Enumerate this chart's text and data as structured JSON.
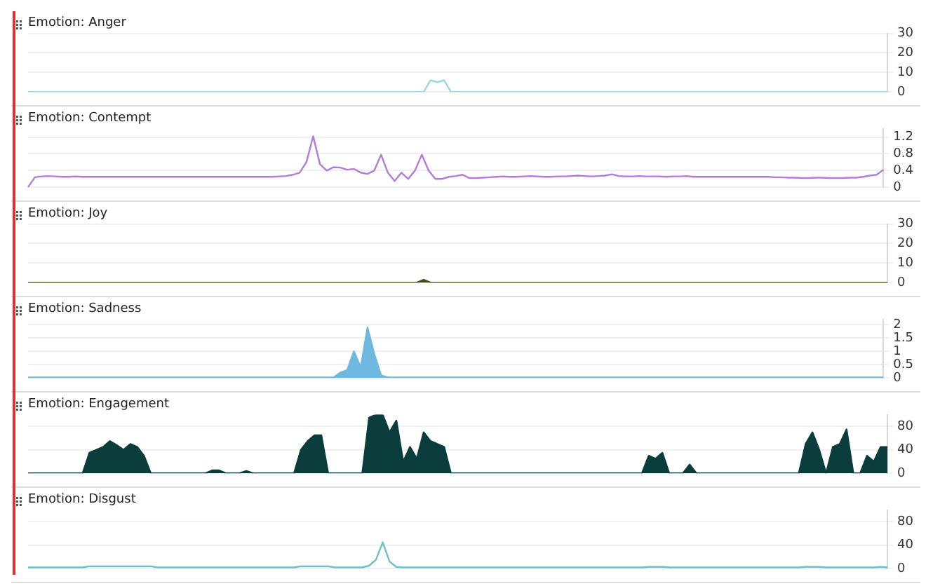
{
  "chart_data": [
    {
      "type": "line",
      "title": "Emotion: Anger",
      "color": "#9fd3e6",
      "ylim": [
        0,
        30
      ],
      "yticks": [
        0,
        10,
        20,
        30
      ],
      "grid": "y",
      "tick_labels": "y",
      "categories": [
        null,
        null,
        null,
        null,
        null,
        null,
        null,
        null,
        null,
        null,
        null,
        null,
        null,
        null,
        null,
        null,
        null,
        null,
        null,
        null,
        null,
        null,
        null,
        null,
        null,
        null,
        null,
        null,
        null,
        null,
        null,
        null,
        null,
        null,
        null,
        null,
        null,
        null,
        null,
        null,
        null,
        null,
        null,
        null,
        null,
        null,
        null,
        null,
        null,
        null,
        null,
        null,
        null,
        null,
        null,
        null,
        null,
        null,
        null,
        null,
        null,
        null,
        null,
        null,
        null,
        null,
        null,
        null,
        null,
        null,
        null,
        null,
        null,
        null,
        null,
        null,
        null,
        null,
        null,
        null,
        null,
        null,
        null,
        null,
        null,
        null,
        null,
        null,
        null,
        null,
        null,
        null,
        null,
        null,
        null,
        null,
        null,
        null,
        null,
        null,
        null,
        null,
        null,
        null,
        null,
        null,
        null,
        null,
        null,
        null,
        null,
        null,
        null,
        null,
        null,
        null,
        null,
        null,
        null,
        null,
        null,
        null,
        null,
        null,
        null,
        null,
        null
      ],
      "values": [
        0,
        0,
        0,
        0,
        0,
        0,
        0,
        0,
        0,
        0,
        0,
        0,
        0,
        0,
        0,
        0,
        0,
        0,
        0,
        0,
        0,
        0,
        0,
        0,
        0,
        0,
        0,
        0,
        0,
        0,
        0,
        0,
        0,
        0,
        0,
        0,
        0,
        0,
        0,
        0,
        0,
        0,
        0,
        0,
        0,
        0,
        0,
        0,
        0,
        0,
        0,
        0,
        0,
        0,
        0,
        0,
        0,
        0,
        0,
        6,
        5,
        6,
        0,
        0,
        0,
        0,
        0,
        0,
        0,
        0,
        0,
        0,
        0,
        0,
        0,
        0,
        0,
        0,
        0,
        0,
        0,
        0,
        0,
        0,
        0,
        0,
        0,
        0,
        0,
        0,
        0,
        0,
        0,
        0,
        0,
        0,
        0,
        0,
        0,
        0,
        0,
        0,
        0,
        0,
        0,
        0,
        0,
        0,
        0,
        0,
        0,
        0,
        0,
        0,
        0,
        0,
        0,
        0,
        0,
        0,
        0,
        0,
        0,
        0,
        0,
        0,
        0
      ]
    },
    {
      "type": "line",
      "title": "Emotion: Contempt",
      "color": "#b57bd9",
      "ylim": [
        0,
        1.4
      ],
      "yticks": [
        0,
        0.4,
        0.8,
        1.2
      ],
      "grid": "y",
      "tick_labels": "y",
      "categories": [
        null,
        null,
        null,
        null,
        null,
        null,
        null,
        null,
        null,
        null,
        null,
        null,
        null,
        null,
        null,
        null,
        null,
        null,
        null,
        null,
        null,
        null,
        null,
        null,
        null,
        null,
        null,
        null,
        null,
        null,
        null,
        null,
        null,
        null,
        null,
        null,
        null,
        null,
        null,
        null,
        null,
        null,
        null,
        null,
        null,
        null,
        null,
        null,
        null,
        null,
        null,
        null,
        null,
        null,
        null,
        null,
        null,
        null,
        null,
        null,
        null,
        null,
        null,
        null,
        null,
        null,
        null,
        null,
        null,
        null,
        null,
        null,
        null,
        null,
        null,
        null,
        null,
        null,
        null,
        null,
        null,
        null,
        null,
        null,
        null,
        null,
        null,
        null,
        null,
        null,
        null,
        null,
        null,
        null,
        null,
        null,
        null,
        null,
        null,
        null,
        null,
        null,
        null,
        null,
        null,
        null,
        null,
        null,
        null,
        null,
        null,
        null,
        null,
        null,
        null,
        null,
        null,
        null,
        null,
        null,
        null,
        null,
        null,
        null,
        null,
        null,
        null
      ],
      "values": [
        0,
        0.24,
        0.26,
        0.27,
        0.26,
        0.25,
        0.25,
        0.26,
        0.25,
        0.25,
        0.25,
        0.25,
        0.25,
        0.25,
        0.25,
        0.25,
        0.25,
        0.25,
        0.25,
        0.25,
        0.25,
        0.25,
        0.25,
        0.25,
        0.25,
        0.25,
        0.25,
        0.25,
        0.25,
        0.25,
        0.25,
        0.25,
        0.25,
        0.25,
        0.25,
        0.25,
        0.25,
        0.26,
        0.27,
        0.3,
        0.35,
        0.6,
        1.22,
        0.55,
        0.4,
        0.48,
        0.47,
        0.42,
        0.44,
        0.35,
        0.32,
        0.4,
        0.78,
        0.35,
        0.15,
        0.35,
        0.2,
        0.4,
        0.78,
        0.4,
        0.2,
        0.2,
        0.25,
        0.27,
        0.3,
        0.22,
        0.22,
        0.23,
        0.24,
        0.25,
        0.26,
        0.25,
        0.25,
        0.26,
        0.27,
        0.26,
        0.25,
        0.25,
        0.26,
        0.26,
        0.27,
        0.28,
        0.27,
        0.26,
        0.27,
        0.28,
        0.31,
        0.27,
        0.26,
        0.26,
        0.27,
        0.26,
        0.26,
        0.26,
        0.25,
        0.26,
        0.26,
        0.27,
        0.25,
        0.25,
        0.25,
        0.25,
        0.25,
        0.25,
        0.25,
        0.25,
        0.25,
        0.25,
        0.25,
        0.25,
        0.24,
        0.24,
        0.23,
        0.23,
        0.22,
        0.22,
        0.23,
        0.23,
        0.22,
        0.22,
        0.22,
        0.23,
        0.23,
        0.25,
        0.28,
        0.3,
        0.42
      ]
    },
    {
      "type": "area",
      "title": "Emotion: Joy",
      "color": "#4a4a1e",
      "ylim": [
        0,
        30
      ],
      "yticks": [
        0,
        10,
        20,
        30
      ],
      "grid": "y",
      "tick_labels": "y",
      "categories": [
        null,
        null,
        null,
        null,
        null,
        null,
        null,
        null,
        null,
        null,
        null,
        null,
        null,
        null,
        null,
        null,
        null,
        null,
        null,
        null,
        null,
        null,
        null,
        null,
        null,
        null,
        null,
        null,
        null,
        null,
        null,
        null,
        null,
        null,
        null,
        null,
        null,
        null,
        null,
        null,
        null,
        null,
        null,
        null,
        null,
        null,
        null,
        null,
        null,
        null,
        null,
        null,
        null,
        null,
        null,
        null,
        null,
        null,
        null,
        null,
        null,
        null,
        null,
        null,
        null,
        null,
        null,
        null,
        null,
        null,
        null,
        null,
        null,
        null,
        null,
        null,
        null,
        null,
        null,
        null,
        null,
        null,
        null,
        null,
        null,
        null,
        null,
        null,
        null,
        null,
        null,
        null,
        null,
        null,
        null,
        null,
        null,
        null,
        null,
        null,
        null,
        null,
        null,
        null,
        null,
        null,
        null,
        null,
        null,
        null,
        null,
        null,
        null,
        null,
        null,
        null,
        null,
        null,
        null,
        null,
        null,
        null,
        null,
        null,
        null,
        null,
        null
      ],
      "values": [
        0,
        0,
        0,
        0,
        0,
        0,
        0,
        0,
        0,
        0,
        0,
        0,
        0,
        0,
        0,
        0,
        0,
        0,
        0,
        0,
        0,
        0,
        0,
        0,
        0,
        0,
        0,
        0,
        0,
        0,
        0,
        0,
        0,
        0,
        0,
        0,
        0,
        0,
        0,
        0,
        0,
        0,
        0,
        0,
        0,
        0,
        0,
        0,
        0,
        0,
        0,
        0,
        0,
        0,
        0,
        0,
        0,
        0,
        1.5,
        0,
        0,
        0,
        0,
        0,
        0,
        0,
        0,
        0,
        0,
        0,
        0,
        0,
        0,
        0,
        0,
        0,
        0,
        0,
        0,
        0,
        0,
        0,
        0,
        0,
        0,
        0,
        0,
        0,
        0,
        0,
        0,
        0,
        0,
        0,
        0,
        0,
        0,
        0,
        0,
        0,
        0,
        0,
        0,
        0,
        0,
        0,
        0,
        0,
        0,
        0,
        0,
        0,
        0,
        0,
        0,
        0,
        0,
        0,
        0,
        0,
        0,
        0,
        0,
        0,
        0,
        0,
        0
      ]
    },
    {
      "type": "area",
      "title": "Emotion: Sadness",
      "color": "#6fb8e0",
      "ylim": [
        0,
        2.2
      ],
      "yticks": [
        0,
        0.5,
        1,
        1.5,
        2
      ],
      "grid": "y",
      "tick_labels": "y",
      "categories": [
        null,
        null,
        null,
        null,
        null,
        null,
        null,
        null,
        null,
        null,
        null,
        null,
        null,
        null,
        null,
        null,
        null,
        null,
        null,
        null,
        null,
        null,
        null,
        null,
        null,
        null,
        null,
        null,
        null,
        null,
        null,
        null,
        null,
        null,
        null,
        null,
        null,
        null,
        null,
        null,
        null,
        null,
        null,
        null,
        null,
        null,
        null,
        null,
        null,
        null,
        null,
        null,
        null,
        null,
        null,
        null,
        null,
        null,
        null,
        null,
        null,
        null,
        null,
        null,
        null,
        null,
        null,
        null,
        null,
        null,
        null,
        null,
        null,
        null,
        null,
        null,
        null,
        null,
        null,
        null,
        null,
        null,
        null,
        null,
        null,
        null,
        null,
        null,
        null,
        null,
        null,
        null,
        null,
        null,
        null,
        null,
        null,
        null,
        null,
        null,
        null,
        null,
        null,
        null,
        null,
        null,
        null,
        null,
        null,
        null,
        null,
        null,
        null,
        null,
        null,
        null,
        null,
        null,
        null,
        null,
        null,
        null,
        null,
        null,
        null,
        null,
        null
      ],
      "values": [
        0.02,
        0.02,
        0.02,
        0.02,
        0.02,
        0.02,
        0.02,
        0.02,
        0.02,
        0.02,
        0.02,
        0.02,
        0.02,
        0.02,
        0.02,
        0.02,
        0.02,
        0.02,
        0.02,
        0.02,
        0.02,
        0.02,
        0.02,
        0.02,
        0.02,
        0.02,
        0.02,
        0.02,
        0.02,
        0.02,
        0.02,
        0.02,
        0.02,
        0.02,
        0.02,
        0.02,
        0.02,
        0.02,
        0.02,
        0.02,
        0.02,
        0.02,
        0.02,
        0.02,
        0.02,
        0.02,
        0.2,
        0.3,
        1.0,
        0.4,
        1.9,
        0.9,
        0.1,
        0.02,
        0.02,
        0.02,
        0.02,
        0.02,
        0.02,
        0.02,
        0.02,
        0.02,
        0.02,
        0.02,
        0.02,
        0.02,
        0.02,
        0.02,
        0.02,
        0.02,
        0.02,
        0.02,
        0.02,
        0.02,
        0.02,
        0.02,
        0.02,
        0.02,
        0.02,
        0.02,
        0.02,
        0.02,
        0.02,
        0.02,
        0.02,
        0.02,
        0.02,
        0.02,
        0.02,
        0.02,
        0.02,
        0.02,
        0.02,
        0.02,
        0.02,
        0.02,
        0.02,
        0.02,
        0.02,
        0.02,
        0.02,
        0.02,
        0.02,
        0.02,
        0.02,
        0.02,
        0.02,
        0.02,
        0.02,
        0.02,
        0.02,
        0.02,
        0.02,
        0.02,
        0.02,
        0.02,
        0.02,
        0.02,
        0.02,
        0.02,
        0.02,
        0.02,
        0.02,
        0.02,
        0.02,
        0.02,
        0.02
      ]
    },
    {
      "type": "area",
      "title": "Emotion: Engagement",
      "color": "#0b3d3d",
      "ylim": [
        0,
        100
      ],
      "yticks": [
        0,
        40,
        80
      ],
      "grid": "y",
      "tick_labels": "y",
      "categories": [
        null,
        null,
        null,
        null,
        null,
        null,
        null,
        null,
        null,
        null,
        null,
        null,
        null,
        null,
        null,
        null,
        null,
        null,
        null,
        null,
        null,
        null,
        null,
        null,
        null,
        null,
        null,
        null,
        null,
        null,
        null,
        null,
        null,
        null,
        null,
        null,
        null,
        null,
        null,
        null,
        null,
        null,
        null,
        null,
        null,
        null,
        null,
        null,
        null,
        null,
        null,
        null,
        null,
        null,
        null,
        null,
        null,
        null,
        null,
        null,
        null,
        null,
        null,
        null,
        null,
        null,
        null,
        null,
        null,
        null,
        null,
        null,
        null,
        null,
        null,
        null,
        null,
        null,
        null,
        null,
        null,
        null,
        null,
        null,
        null,
        null,
        null,
        null,
        null,
        null,
        null,
        null,
        null,
        null,
        null,
        null,
        null,
        null,
        null,
        null,
        null,
        null,
        null,
        null,
        null,
        null,
        null,
        null,
        null,
        null,
        null,
        null,
        null,
        null,
        null,
        null,
        null,
        null,
        null,
        null,
        null,
        null,
        null,
        null,
        null,
        null,
        null
      ],
      "values": [
        0,
        0,
        0,
        0,
        0,
        0,
        0,
        0,
        0,
        35,
        40,
        45,
        55,
        48,
        40,
        50,
        45,
        30,
        0,
        0,
        0,
        0,
        0,
        0,
        0,
        0,
        0,
        5,
        5,
        0,
        0,
        0,
        4,
        0,
        0,
        0,
        0,
        0,
        0,
        0,
        40,
        55,
        65,
        65,
        0,
        0,
        0,
        0,
        0,
        0,
        95,
        100,
        100,
        70,
        90,
        20,
        45,
        25,
        70,
        55,
        50,
        45,
        0,
        0,
        0,
        0,
        0,
        0,
        0,
        0,
        0,
        0,
        0,
        0,
        0,
        0,
        0,
        0,
        0,
        0,
        0,
        0,
        0,
        0,
        0,
        0,
        0,
        0,
        0,
        0,
        0,
        30,
        25,
        35,
        0,
        0,
        0,
        15,
        0,
        0,
        0,
        0,
        0,
        0,
        0,
        0,
        0,
        0,
        0,
        0,
        0,
        0,
        0,
        0,
        50,
        70,
        40,
        0,
        45,
        50,
        75,
        0,
        0,
        30,
        20,
        45,
        45
      ]
    },
    {
      "type": "line",
      "title": "Emotion: Disgust",
      "color": "#6cc0c8",
      "ylim": [
        0,
        100
      ],
      "yticks": [
        0,
        40,
        80
      ],
      "grid": "y",
      "tick_labels": "y",
      "categories": [
        null,
        null,
        null,
        null,
        null,
        null,
        null,
        null,
        null,
        null,
        null,
        null,
        null,
        null,
        null,
        null,
        null,
        null,
        null,
        null,
        null,
        null,
        null,
        null,
        null,
        null,
        null,
        null,
        null,
        null,
        null,
        null,
        null,
        null,
        null,
        null,
        null,
        null,
        null,
        null,
        null,
        null,
        null,
        null,
        null,
        null,
        null,
        null,
        null,
        null,
        null,
        null,
        null,
        null,
        null,
        null,
        null,
        null,
        null,
        null,
        null,
        null,
        null,
        null,
        null,
        null,
        null,
        null,
        null,
        null,
        null,
        null,
        null,
        null,
        null,
        null,
        null,
        null,
        null,
        null,
        null,
        null,
        null,
        null,
        null,
        null,
        null,
        null,
        null,
        null,
        null,
        null,
        null,
        null,
        null,
        null,
        null,
        null,
        null,
        null,
        null,
        null,
        null,
        null,
        null,
        null,
        null,
        null,
        null,
        null,
        null,
        null,
        null,
        null,
        null,
        null,
        null,
        null,
        null,
        null,
        null,
        null,
        null,
        null,
        null,
        null,
        null
      ],
      "values": [
        2,
        2,
        2,
        2,
        2,
        2,
        2,
        2,
        2,
        4,
        4,
        4,
        4,
        4,
        4,
        4,
        4,
        4,
        4,
        2,
        2,
        2,
        2,
        2,
        2,
        2,
        2,
        2,
        2,
        2,
        2,
        2,
        2,
        2,
        2,
        2,
        2,
        2,
        2,
        2,
        4,
        4,
        4,
        4,
        4,
        2,
        2,
        2,
        2,
        2,
        5,
        15,
        45,
        12,
        3,
        2,
        2,
        2,
        2,
        2,
        2,
        2,
        2,
        2,
        2,
        2,
        2,
        2,
        2,
        2,
        2,
        2,
        2,
        2,
        2,
        2,
        2,
        2,
        2,
        2,
        2,
        2,
        2,
        2,
        2,
        2,
        2,
        2,
        2,
        2,
        2,
        3,
        3,
        3,
        2,
        2,
        2,
        2,
        2,
        2,
        2,
        2,
        2,
        2,
        2,
        2,
        2,
        2,
        2,
        2,
        2,
        2,
        2,
        2,
        3,
        3,
        3,
        2,
        2,
        2,
        2,
        2,
        2,
        2,
        2,
        3,
        2
      ]
    }
  ]
}
